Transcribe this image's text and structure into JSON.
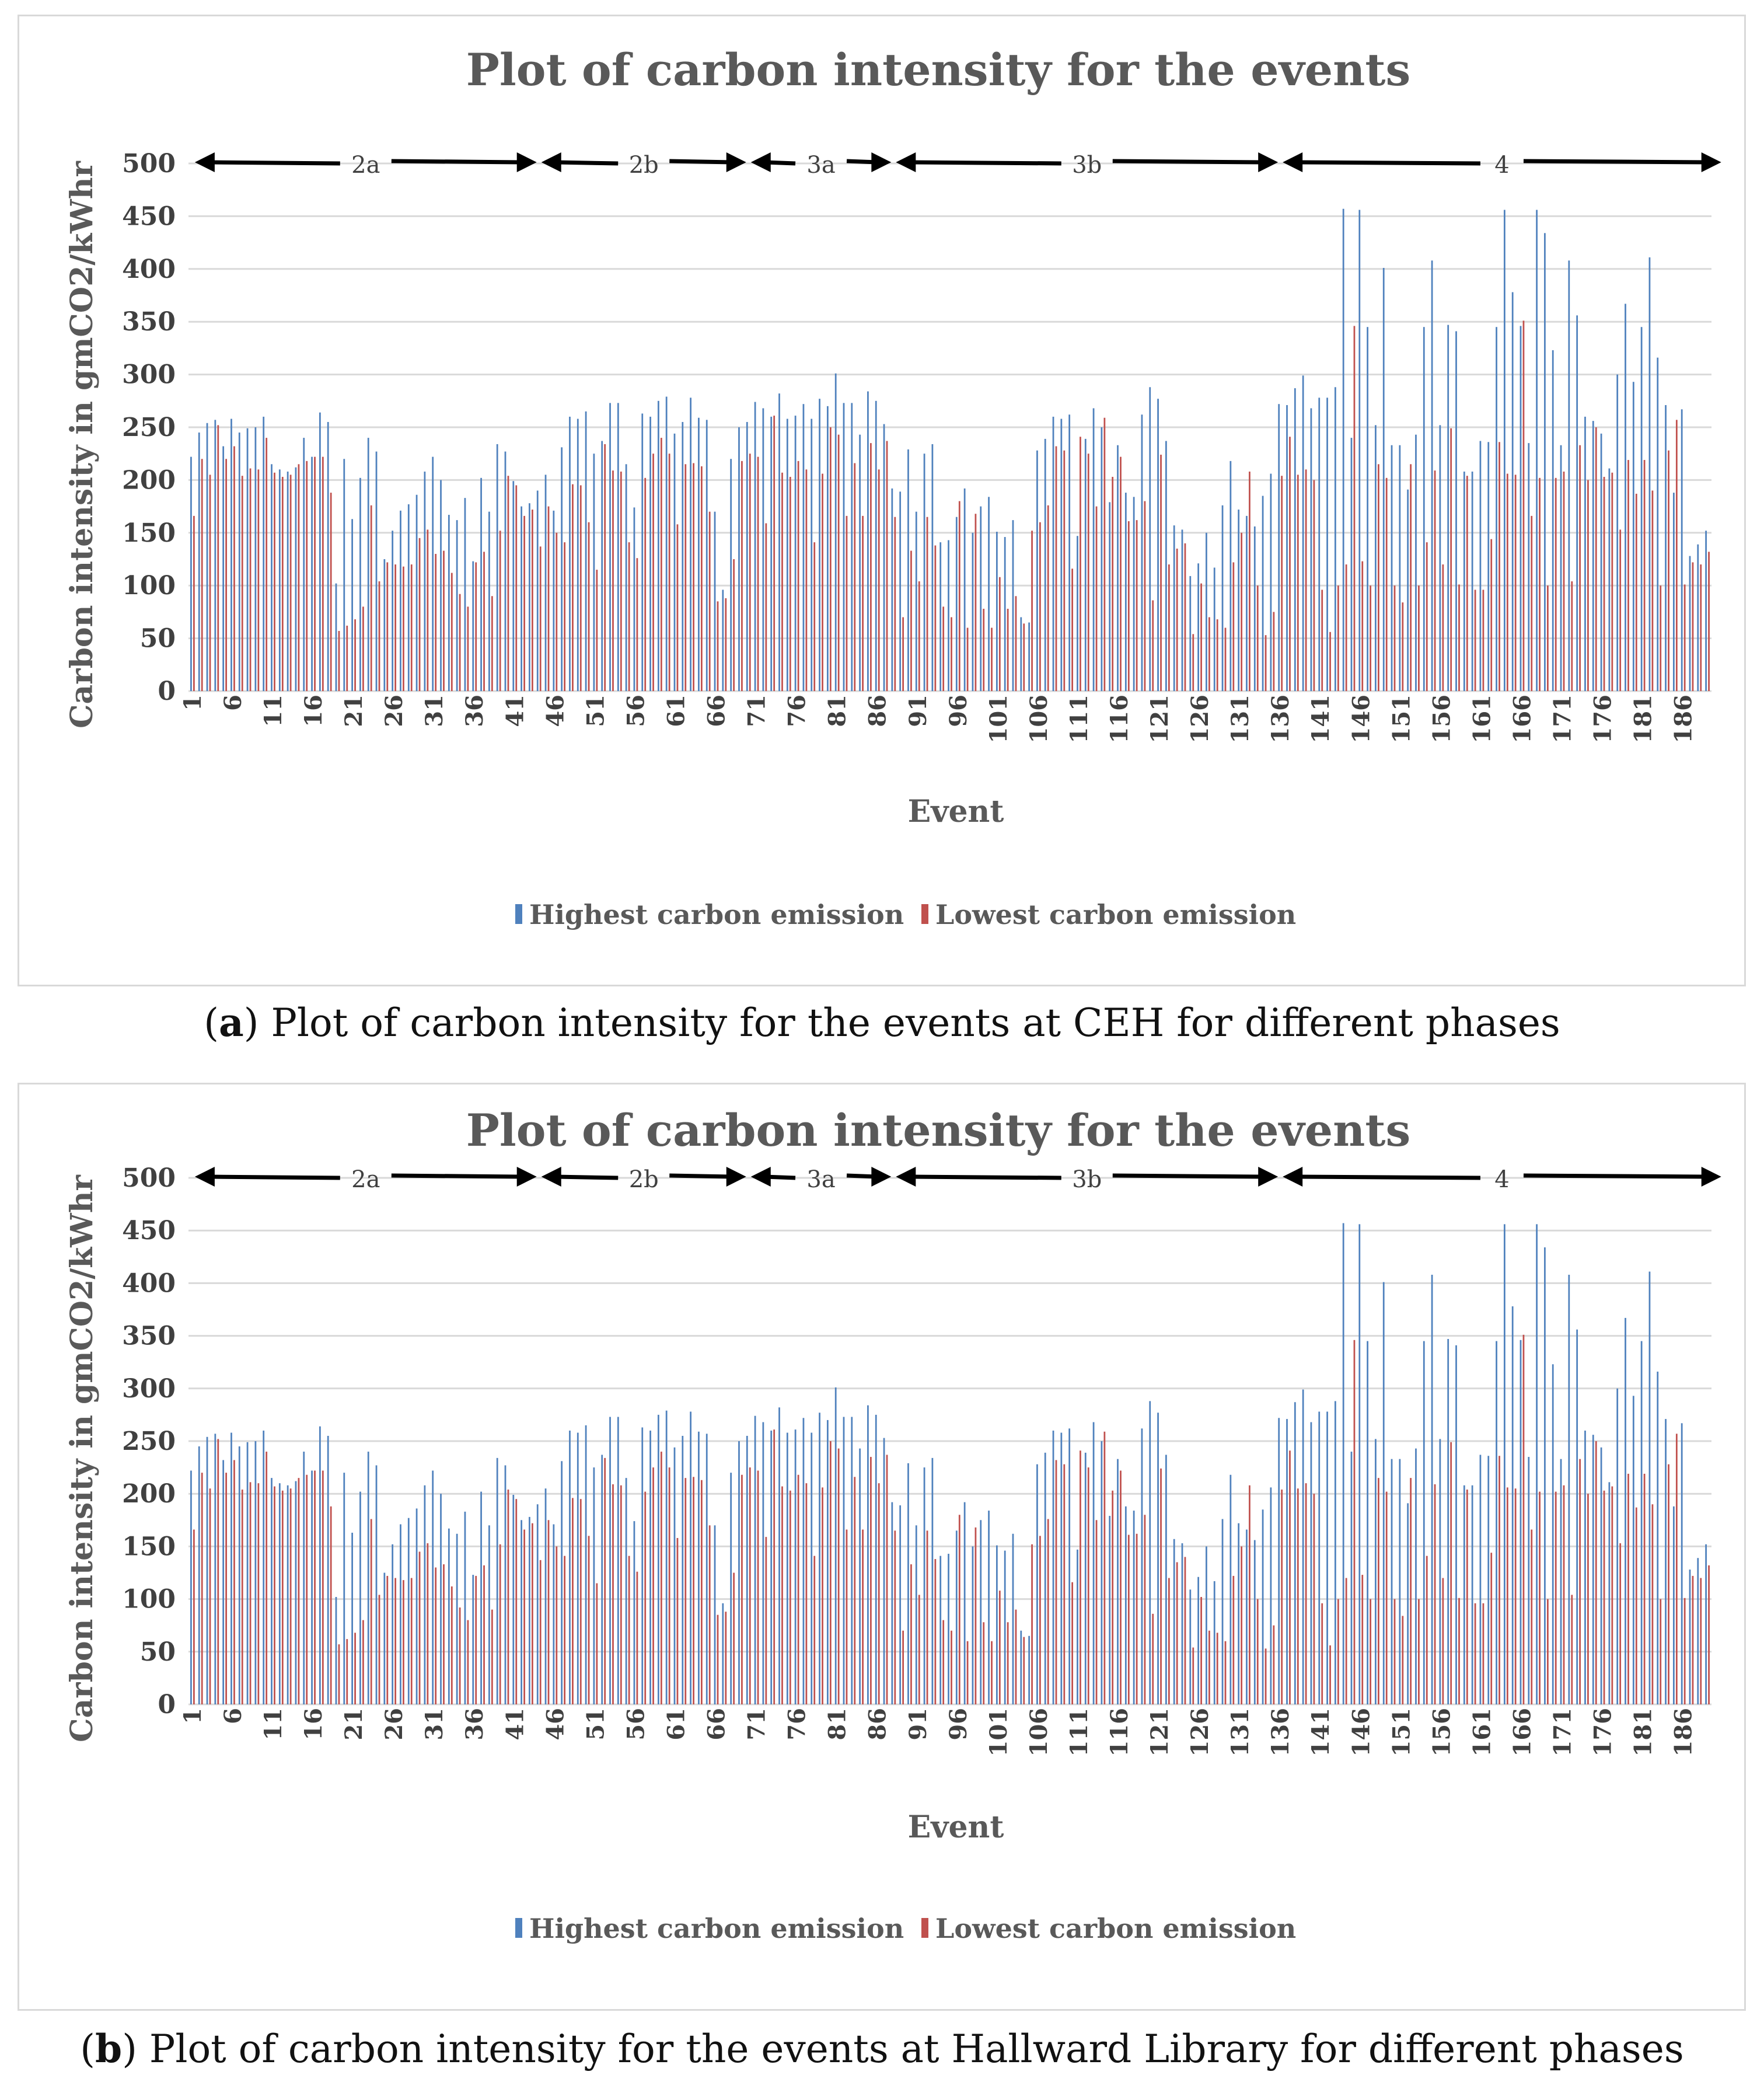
{
  "captions": [
    {
      "letter": "a",
      "text": ") Plot of carbon intensity for the events at CEH for different phases"
    },
    {
      "letter": "b",
      "text": ") Plot of carbon intensity for the events at Hallward Library for different phases"
    }
  ],
  "colors": {
    "high": "#4f81bd",
    "low": "#c0504d",
    "grid": "#d9d9d9",
    "arrow": "#000000"
  },
  "chart_data": [
    {
      "type": "bar",
      "title": "Plot of carbon intensity for the events",
      "xlabel": "Event",
      "ylabel": "Carbon intensity in gmCO2/kWhr",
      "ylim": [
        0,
        500
      ],
      "yticks": [
        0,
        50,
        100,
        150,
        200,
        250,
        300,
        350,
        400,
        450,
        500
      ],
      "xtick_labels": [
        "1",
        "6",
        "11",
        "16",
        "21",
        "26",
        "31",
        "36",
        "41",
        "46",
        "51",
        "56",
        "61",
        "66",
        "71",
        "76",
        "81",
        "86",
        "91",
        "96",
        "101",
        "106",
        "111",
        "116",
        "121",
        "126",
        "131",
        "136",
        "141",
        "146",
        "151",
        "156",
        "161",
        "166",
        "171",
        "176",
        "181",
        "186"
      ],
      "legend": {
        "position": "bottom",
        "entries": [
          "Highest carbon emission",
          "Lowest carbon emission"
        ]
      },
      "phases": [
        {
          "label": "2a",
          "start": 1,
          "end": 43
        },
        {
          "label": "2b",
          "start": 44,
          "end": 69
        },
        {
          "label": "3a",
          "start": 70,
          "end": 87
        },
        {
          "label": "3b",
          "start": 88,
          "end": 135
        },
        {
          "label": "4",
          "start": 136,
          "end": 190
        }
      ],
      "series": [
        {
          "name": "Highest carbon emission",
          "values": [
            222,
            245,
            254,
            257,
            232,
            258,
            245,
            249,
            250,
            260,
            215,
            210,
            208,
            212,
            240,
            222,
            264,
            255,
            102,
            220,
            163,
            202,
            240,
            227,
            125,
            152,
            171,
            177,
            186,
            208,
            222,
            200,
            167,
            162,
            183,
            123,
            202,
            170,
            234,
            227,
            199,
            175,
            178,
            190,
            205,
            171,
            231,
            260,
            258,
            265,
            225,
            237,
            273,
            273,
            215,
            174,
            263,
            260,
            275,
            279,
            244,
            255,
            278,
            259,
            257,
            170,
            96,
            220,
            250,
            255,
            274,
            268,
            260,
            282,
            258,
            261,
            272,
            258,
            277,
            270,
            301,
            273,
            273,
            243,
            284,
            275,
            253,
            192,
            189,
            229,
            170,
            225,
            234,
            141,
            143,
            165,
            192,
            150,
            175,
            184,
            151,
            146,
            162,
            70,
            65,
            228,
            239,
            260,
            258,
            262,
            147,
            239,
            268,
            250,
            179,
            233,
            188,
            184,
            262,
            288,
            277,
            237,
            157,
            153,
            109,
            121,
            150,
            117,
            176,
            218,
            172,
            166,
            156,
            185,
            206,
            272,
            271,
            287,
            299,
            268,
            278,
            278,
            288,
            457,
            240,
            456,
            345,
            252,
            401,
            233,
            233,
            191,
            243,
            345,
            408,
            252,
            347,
            341,
            208,
            208,
            237,
            236,
            345,
            456,
            378,
            346,
            235,
            456,
            434,
            323,
            233,
            408,
            356,
            260,
            256,
            244,
            211,
            300,
            367,
            293,
            345,
            411,
            316,
            271,
            188,
            267,
            128,
            139,
            152
          ]
        },
        {
          "name": "Lowest carbon emission",
          "values": [
            166,
            220,
            205,
            252,
            220,
            232,
            204,
            211,
            210,
            240,
            207,
            203,
            205,
            215,
            218,
            222,
            222,
            188,
            57,
            62,
            68,
            80,
            176,
            104,
            122,
            120,
            118,
            120,
            145,
            153,
            130,
            133,
            112,
            92,
            80,
            122,
            132,
            90,
            152,
            204,
            195,
            166,
            172,
            137,
            175,
            150,
            141,
            196,
            195,
            160,
            115,
            234,
            209,
            208,
            141,
            126,
            202,
            225,
            240,
            225,
            158,
            215,
            216,
            213,
            170,
            85,
            88,
            125,
            218,
            225,
            222,
            159,
            261,
            207,
            203,
            218,
            210,
            141,
            206,
            250,
            243,
            166,
            216,
            166,
            235,
            210,
            237,
            165,
            70,
            133,
            104,
            165,
            138,
            80,
            70,
            180,
            60,
            168,
            78,
            60,
            108,
            78,
            90,
            64,
            152,
            160,
            176,
            232,
            228,
            116,
            241,
            225,
            175,
            259,
            203,
            222,
            161,
            162,
            180,
            86,
            224,
            120,
            135,
            140,
            54,
            102,
            70,
            68,
            60,
            122,
            150,
            208,
            100,
            53,
            75,
            204,
            241,
            205,
            210,
            200,
            96,
            56,
            100,
            120,
            346,
            123,
            100,
            215,
            202,
            100,
            84,
            215,
            100,
            141,
            209,
            120,
            249,
            101,
            204,
            96,
            96,
            144,
            236,
            206,
            205,
            351,
            166,
            202,
            100,
            202,
            208,
            104,
            233,
            200,
            250,
            203,
            207,
            153,
            219,
            187,
            219,
            190,
            100,
            228,
            257,
            101,
            122,
            120,
            132
          ]
        }
      ]
    },
    {
      "type": "bar",
      "title": "Plot of carbon intensity for the events",
      "xlabel": "Event",
      "ylabel": "Carbon intensity in gmCO2/kWhr",
      "ylim": [
        0,
        500
      ],
      "yticks": [
        0,
        50,
        100,
        150,
        200,
        250,
        300,
        350,
        400,
        450,
        500
      ],
      "xtick_labels": [
        "1",
        "6",
        "11",
        "16",
        "21",
        "26",
        "31",
        "36",
        "41",
        "46",
        "51",
        "56",
        "61",
        "66",
        "71",
        "76",
        "81",
        "86",
        "91",
        "96",
        "101",
        "106",
        "111",
        "116",
        "121",
        "126",
        "131",
        "136",
        "141",
        "146",
        "151",
        "156",
        "161",
        "166",
        "171",
        "176",
        "181",
        "186"
      ],
      "legend": {
        "position": "bottom",
        "entries": [
          "Highest carbon emission",
          "Lowest carbon emission"
        ]
      },
      "phases": [
        {
          "label": "2a",
          "start": 1,
          "end": 43
        },
        {
          "label": "2b",
          "start": 44,
          "end": 69
        },
        {
          "label": "3a",
          "start": 70,
          "end": 87
        },
        {
          "label": "3b",
          "start": 88,
          "end": 135
        },
        {
          "label": "4",
          "start": 136,
          "end": 190
        }
      ],
      "series": [
        {
          "name": "Highest carbon emission",
          "values": [
            222,
            245,
            254,
            257,
            232,
            258,
            245,
            249,
            250,
            260,
            215,
            210,
            208,
            212,
            240,
            222,
            264,
            255,
            102,
            220,
            163,
            202,
            240,
            227,
            125,
            152,
            171,
            177,
            186,
            208,
            222,
            200,
            167,
            162,
            183,
            123,
            202,
            170,
            234,
            227,
            199,
            175,
            178,
            190,
            205,
            171,
            231,
            260,
            258,
            265,
            225,
            237,
            273,
            273,
            215,
            174,
            263,
            260,
            275,
            279,
            244,
            255,
            278,
            259,
            257,
            170,
            96,
            220,
            250,
            255,
            274,
            268,
            260,
            282,
            258,
            261,
            272,
            258,
            277,
            270,
            301,
            273,
            273,
            243,
            284,
            275,
            253,
            192,
            189,
            229,
            170,
            225,
            234,
            141,
            143,
            165,
            192,
            150,
            175,
            184,
            151,
            146,
            162,
            70,
            65,
            228,
            239,
            260,
            258,
            262,
            147,
            239,
            268,
            250,
            179,
            233,
            188,
            184,
            262,
            288,
            277,
            237,
            157,
            153,
            109,
            121,
            150,
            117,
            176,
            218,
            172,
            166,
            156,
            185,
            206,
            272,
            271,
            287,
            299,
            268,
            278,
            278,
            288,
            457,
            240,
            456,
            345,
            252,
            401,
            233,
            233,
            191,
            243,
            345,
            408,
            252,
            347,
            341,
            208,
            208,
            237,
            236,
            345,
            456,
            378,
            346,
            235,
            456,
            434,
            323,
            233,
            408,
            356,
            260,
            256,
            244,
            211,
            300,
            367,
            293,
            345,
            411,
            316,
            271,
            188,
            267,
            128,
            139,
            152
          ]
        },
        {
          "name": "Lowest carbon emission",
          "values": [
            166,
            220,
            205,
            252,
            220,
            232,
            204,
            211,
            210,
            240,
            207,
            203,
            205,
            215,
            218,
            222,
            222,
            188,
            57,
            62,
            68,
            80,
            176,
            104,
            122,
            120,
            118,
            120,
            145,
            153,
            130,
            133,
            112,
            92,
            80,
            122,
            132,
            90,
            152,
            204,
            195,
            166,
            172,
            137,
            175,
            150,
            141,
            196,
            195,
            160,
            115,
            234,
            209,
            208,
            141,
            126,
            202,
            225,
            240,
            225,
            158,
            215,
            216,
            213,
            170,
            85,
            88,
            125,
            218,
            225,
            222,
            159,
            261,
            207,
            203,
            218,
            210,
            141,
            206,
            250,
            243,
            166,
            216,
            166,
            235,
            210,
            237,
            165,
            70,
            133,
            104,
            165,
            138,
            80,
            70,
            180,
            60,
            168,
            78,
            60,
            108,
            78,
            90,
            64,
            152,
            160,
            176,
            232,
            228,
            116,
            241,
            225,
            175,
            259,
            203,
            222,
            161,
            162,
            180,
            86,
            224,
            120,
            135,
            140,
            54,
            102,
            70,
            68,
            60,
            122,
            150,
            208,
            100,
            53,
            75,
            204,
            241,
            205,
            210,
            200,
            96,
            56,
            100,
            120,
            346,
            123,
            100,
            215,
            202,
            100,
            84,
            215,
            100,
            141,
            209,
            120,
            249,
            101,
            204,
            96,
            96,
            144,
            236,
            206,
            205,
            351,
            166,
            202,
            100,
            202,
            208,
            104,
            233,
            200,
            250,
            203,
            207,
            153,
            219,
            187,
            219,
            190,
            100,
            228,
            257,
            101,
            122,
            120,
            132
          ]
        }
      ]
    }
  ]
}
